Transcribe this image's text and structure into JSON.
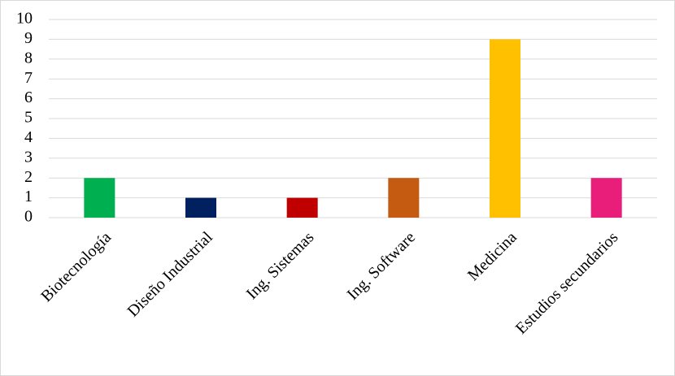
{
  "chart_data": {
    "type": "bar",
    "categories": [
      "Biotecnología",
      "Diseño Industrial",
      "Ing. Sistemas",
      "Ing. Software",
      "Medicina",
      "Estudios secundarios"
    ],
    "values": [
      2,
      1,
      1,
      2,
      9,
      2
    ],
    "colors": [
      "#00b050",
      "#002060",
      "#c00000",
      "#c55a11",
      "#ffc000",
      "#e91e7a"
    ],
    "ylim": [
      0,
      10
    ],
    "yticks": [
      0,
      1,
      2,
      3,
      4,
      5,
      6,
      7,
      8,
      9,
      10
    ],
    "grid": true
  }
}
